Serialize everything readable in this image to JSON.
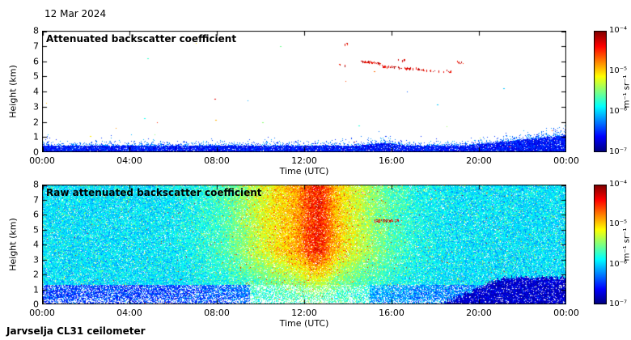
{
  "page": {
    "date_label": "12 Mar 2024",
    "footer": "Jarvselja CL31 ceilometer"
  },
  "colors": {
    "background": "#ffffff",
    "axis": "#000000",
    "colormap": "jet"
  },
  "chart_data": [
    {
      "type": "heatmap",
      "title": "Attenuated backscatter coefficient",
      "xlabel": "Time (UTC)",
      "ylabel": "Height (km)",
      "x_ticks": [
        "00:00",
        "04:00",
        "08:00",
        "12:00",
        "16:00",
        "20:00",
        "00:00"
      ],
      "x_range_hours": [
        0,
        24
      ],
      "y_ticks": [
        "0",
        "1",
        "2",
        "3",
        "4",
        "5",
        "6",
        "7",
        "8"
      ],
      "y_range_km": [
        0,
        8
      ],
      "grid": false,
      "colorbar": {
        "ticks": [
          "10⁻⁴",
          "10⁻⁵",
          "10⁻⁶",
          "10⁻⁷"
        ],
        "unit": "m⁻¹ sr⁻¹",
        "scale": "log",
        "range_log10": [
          -7,
          -4
        ],
        "colormap": "jet",
        "position": "right"
      },
      "content": {
        "background": "white",
        "boundary_layer": {
          "base_top_km": 0.7,
          "dense_top_km": 0.42,
          "afternoon_bump": {
            "hour": 15.6,
            "extra_km": 0.3
          },
          "evening_rise": {
            "start_hour": 19.3,
            "top_km_by_midnight": 1.7
          }
        },
        "cloud_segments": [
          {
            "t0": 13.5,
            "t1": 13.9,
            "h0": 5.75,
            "h1": 5.7,
            "density": 0.3
          },
          {
            "t0": 14.6,
            "t1": 15.6,
            "h0": 5.95,
            "h1": 5.75,
            "density": 0.85
          },
          {
            "t0": 15.6,
            "t1": 16.8,
            "h0": 5.62,
            "h1": 5.45,
            "density": 0.7
          },
          {
            "t0": 16.8,
            "t1": 17.8,
            "h0": 5.45,
            "h1": 5.35,
            "density": 0.45
          },
          {
            "t0": 17.8,
            "t1": 18.7,
            "h0": 5.32,
            "h1": 5.25,
            "density": 0.28
          },
          {
            "t0": 19.0,
            "t1": 19.3,
            "h0": 5.9,
            "h1": 5.85,
            "density": 0.5
          },
          {
            "t0": 16.3,
            "t1": 16.6,
            "h0": 6.05,
            "h1": 6.0,
            "density": 0.4
          },
          {
            "t0": 13.85,
            "t1": 13.95,
            "h0": 7.1,
            "h1": 7.1,
            "density": 0.6
          }
        ],
        "stray_speck_count": 26
      }
    },
    {
      "type": "heatmap",
      "title": "Raw attenuated backscatter coefficient",
      "xlabel": "Time (UTC)",
      "ylabel": "Height (km)",
      "x_ticks": [
        "00:00",
        "04:00",
        "08:00",
        "12:00",
        "16:00",
        "20:00",
        "00:00"
      ],
      "x_range_hours": [
        0,
        24
      ],
      "y_ticks": [
        "0",
        "1",
        "2",
        "3",
        "4",
        "5",
        "6",
        "7",
        "8"
      ],
      "y_range_km": [
        0,
        8
      ],
      "grid": false,
      "colorbar": {
        "ticks": [
          "10⁻⁴",
          "10⁻⁵",
          "10⁻⁶",
          "10⁻⁷"
        ],
        "unit": "m⁻¹ sr⁻¹",
        "scale": "log",
        "range_log10": [
          -7,
          -4
        ],
        "colormap": "jet",
        "position": "right"
      },
      "content": {
        "base_log10": -5.95,
        "midday_enhancement": {
          "peak_hour": 12.2,
          "sigma_hours": 3.4,
          "max_boost_log10": 1.05
        },
        "strong_plume": {
          "hour": 12.6,
          "sigma_hours": 0.7,
          "extra_log10": 0.45
        },
        "cloud_line": {
          "t0": 15.2,
          "t1": 16.3,
          "h_km": 5.55
        },
        "evening_bl_wedge": {
          "start_hour": 18.2,
          "rise_km_per_hour": 0.62,
          "max_top_km": 1.8
        },
        "low_level": {
          "top_km": 1.3,
          "blue_until_hour": 9.5,
          "sparse_until_hour": 15
        }
      }
    }
  ]
}
